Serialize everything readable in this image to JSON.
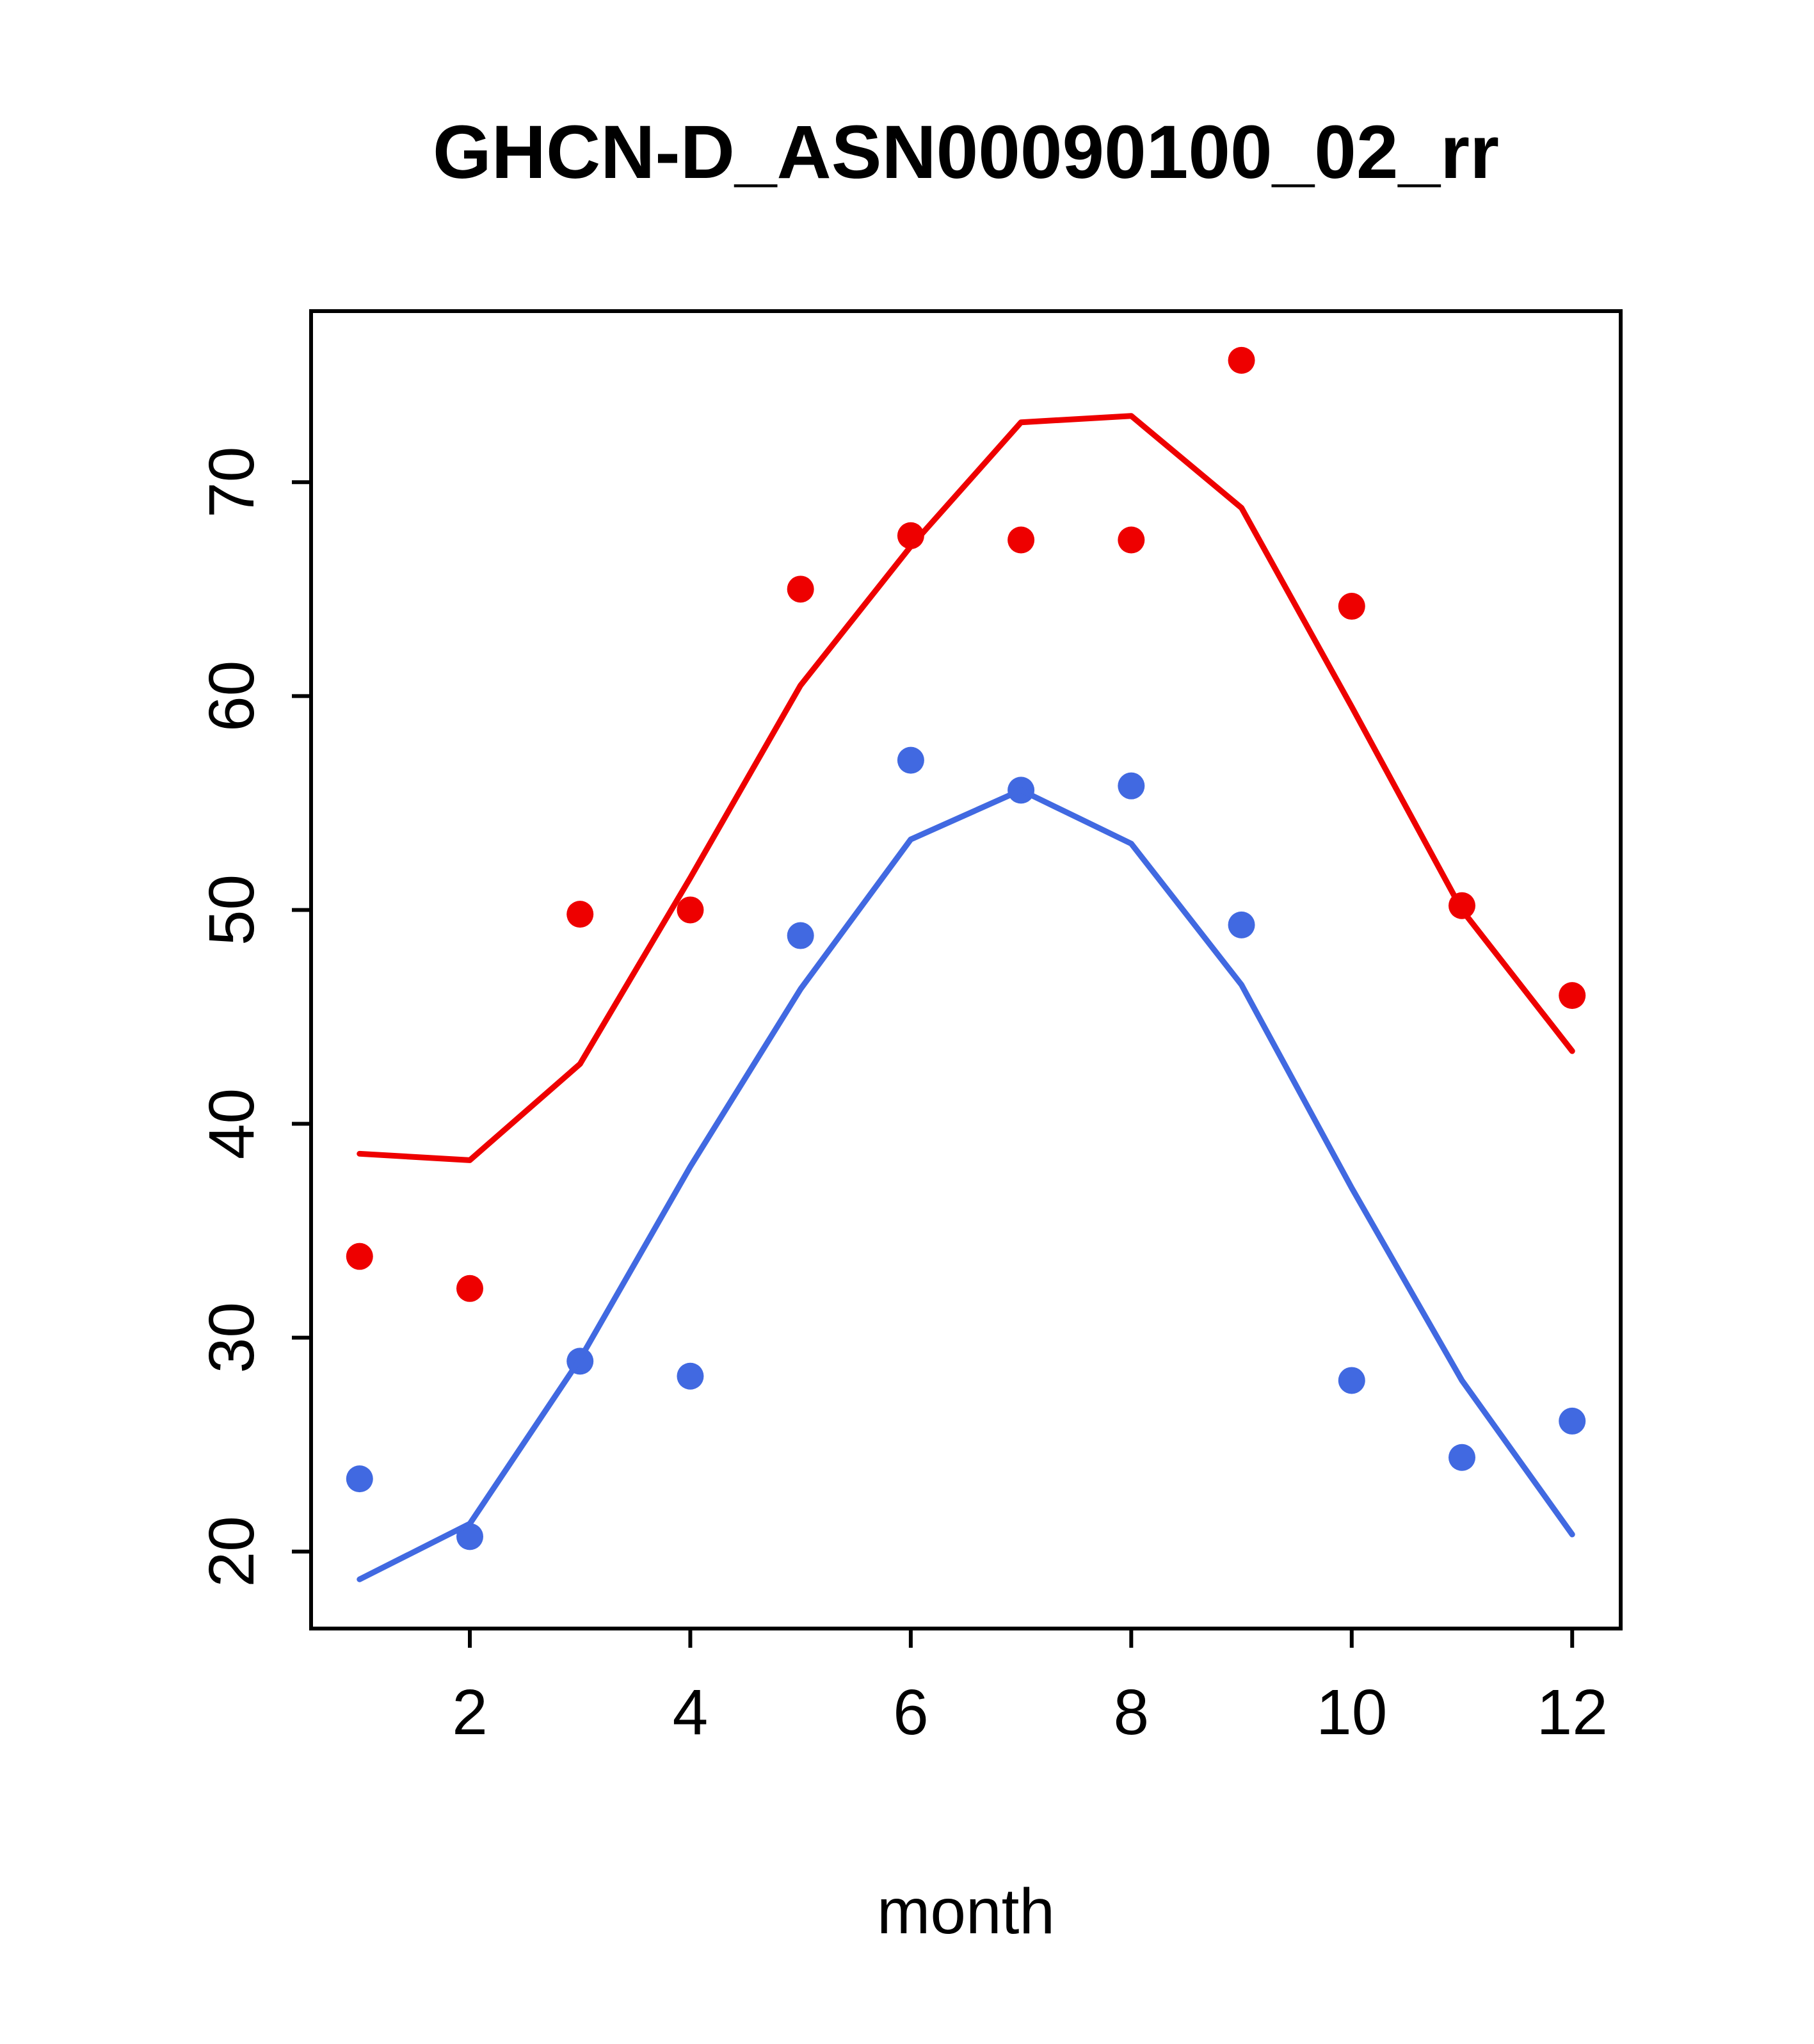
{
  "chart_data": {
    "type": "scatter",
    "title": "GHCN-D_ASN00090100_02_rr",
    "xlabel": "month",
    "ylabel": "",
    "x": [
      1,
      2,
      3,
      4,
      5,
      6,
      7,
      8,
      9,
      10,
      11,
      12
    ],
    "xlim": [
      0.56,
      12.44
    ],
    "ylim": [
      16.4,
      78.0
    ],
    "xticks": [
      2,
      4,
      6,
      8,
      10,
      12
    ],
    "yticks": [
      20,
      30,
      40,
      50,
      60,
      70
    ],
    "grid": false,
    "legend": "none",
    "colors": {
      "upper": "#ee0000",
      "lower": "#4169e1",
      "axis": "#000000"
    },
    "series": [
      {
        "name": "upper-points",
        "style": "points",
        "color": "#ee0000",
        "values": [
          33.8,
          32.3,
          49.8,
          50.0,
          65.0,
          67.5,
          67.3,
          67.3,
          75.7,
          64.2,
          50.2,
          46.0
        ]
      },
      {
        "name": "upper-line",
        "style": "line",
        "color": "#ee0000",
        "values": [
          38.6,
          38.3,
          42.8,
          51.5,
          60.5,
          67.0,
          72.8,
          73.1,
          68.8,
          59.5,
          50.0,
          43.4
        ]
      },
      {
        "name": "lower-points",
        "style": "points",
        "color": "#4169e1",
        "values": [
          23.4,
          20.7,
          28.9,
          28.2,
          48.8,
          57.0,
          55.6,
          55.8,
          49.3,
          28.0,
          24.4,
          26.1
        ]
      },
      {
        "name": "lower-line",
        "style": "line",
        "color": "#4169e1",
        "values": [
          18.7,
          21.3,
          29.0,
          38.0,
          46.3,
          53.3,
          55.6,
          53.1,
          46.5,
          37.0,
          28.0,
          20.8
        ]
      }
    ]
  }
}
